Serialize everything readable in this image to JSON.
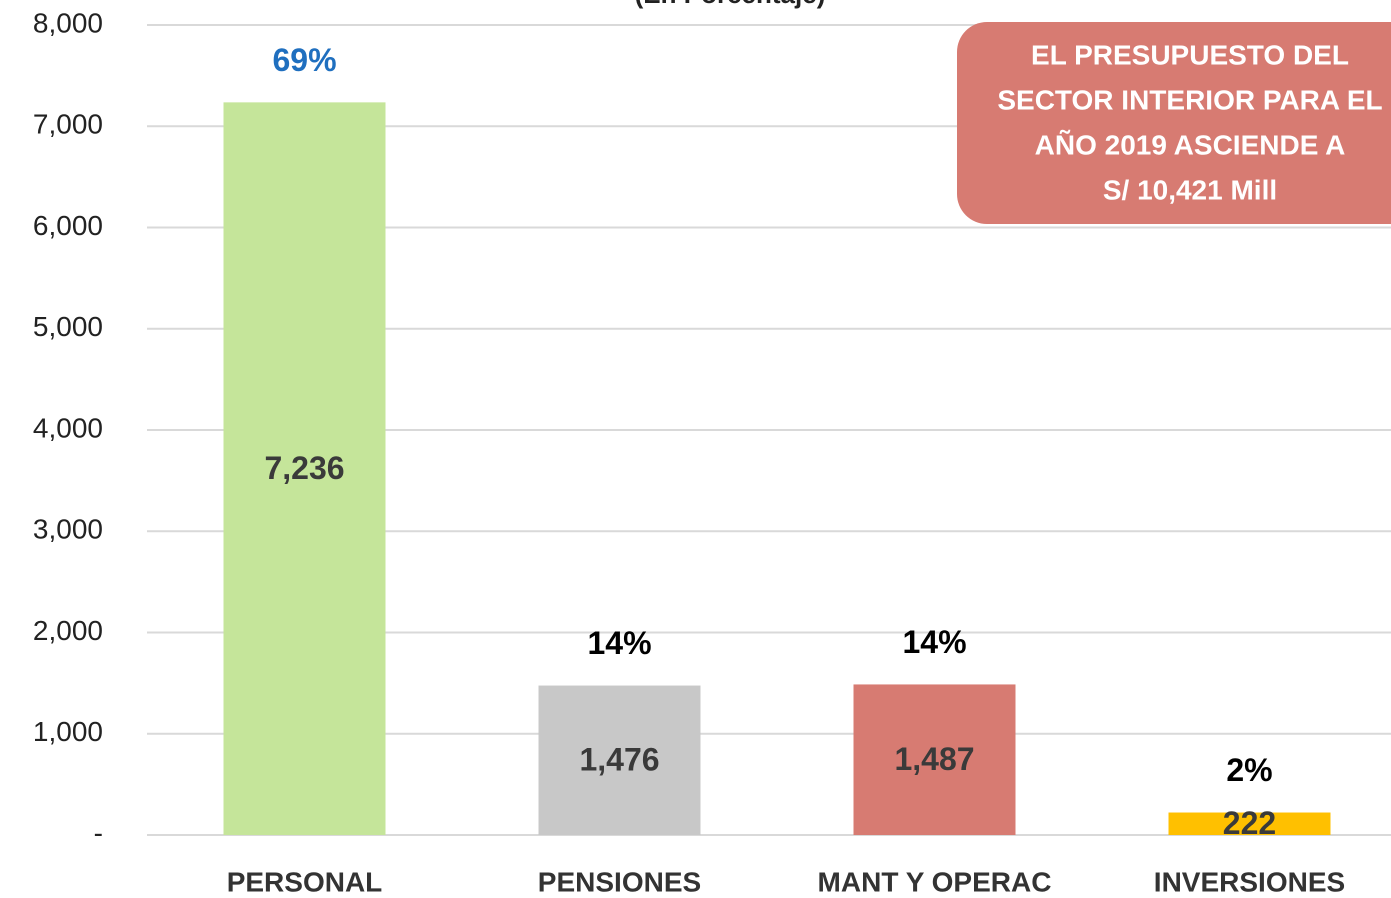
{
  "chart_data": {
    "type": "bar",
    "subtitle": "(En Porcentaje)",
    "categories": [
      "PERSONAL",
      "PENSIONES",
      "MANT Y OPERAC",
      "INVERSIONES"
    ],
    "values": [
      7236,
      1476,
      1487,
      222
    ],
    "value_labels": [
      "7,236",
      "1,476",
      "1,487",
      "222"
    ],
    "colors": [
      "#c5e59a",
      "#c8c8c8",
      "#d77b72",
      "#ffc000"
    ],
    "share_labels": [
      "69%",
      "14%",
      "14%",
      "2%"
    ],
    "share_label_colors": [
      "#1f6fbf",
      "#000000",
      "#000000",
      "#000000"
    ],
    "ylim": [
      0,
      8000
    ],
    "yticks": [
      {
        "value": 0,
        "label": "-"
      },
      {
        "value": 1000,
        "label": "1,000"
      },
      {
        "value": 2000,
        "label": "2,000"
      },
      {
        "value": 3000,
        "label": "3,000"
      },
      {
        "value": 4000,
        "label": "4,000"
      },
      {
        "value": 5000,
        "label": "5,000"
      },
      {
        "value": 6000,
        "label": "6,000"
      },
      {
        "value": 7000,
        "label": "7,000"
      },
      {
        "value": 8000,
        "label": "8,000"
      }
    ],
    "grid": true,
    "annotation": {
      "lines": [
        "EL PRESUPUESTO DEL",
        "SECTOR INTERIOR PARA EL",
        "AÑO 2019 ASCIENDE A",
        "S/ 10,421 Mill"
      ],
      "color": "#d77b72"
    }
  }
}
